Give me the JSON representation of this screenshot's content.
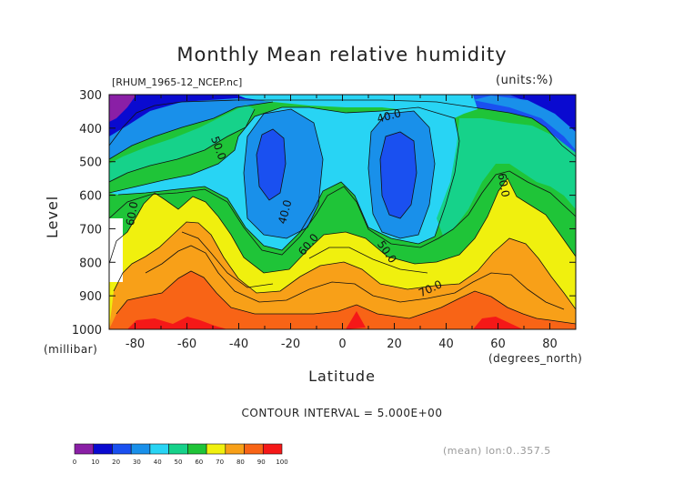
{
  "figure": {
    "title": "Monthly Mean relative humidity",
    "file_label": "[RHUM_1965-12_NCEP.nc]",
    "units_label": "(units:%)",
    "contour_interval_text": "CONTOUR INTERVAL = 5.000E+00",
    "mean_note": "(mean) lon:0..357.5"
  },
  "chart_data": {
    "type": "contour",
    "title": "Monthly Mean relative humidity",
    "xlabel": "Latitude",
    "xunit": "(degrees_north)",
    "ylabel": "Level",
    "yunit": "(millibar)",
    "xlim": [
      -90,
      90
    ],
    "ylim": [
      1000,
      300
    ],
    "xticks": [
      -80,
      -60,
      -40,
      -20,
      0,
      20,
      40,
      60,
      80
    ],
    "xtick_labels": [
      "-80",
      "-60",
      "-40",
      "-20",
      "0",
      "20",
      "40",
      "60",
      "80"
    ],
    "yticks": [
      300,
      400,
      500,
      600,
      700,
      800,
      900,
      1000
    ],
    "ytick_labels": [
      "300",
      "400",
      "500",
      "600",
      "700",
      "800",
      "900",
      "1000"
    ],
    "contour_interval": 5,
    "contour_labels": [
      {
        "text": "40.0",
        "lat": 18,
        "level": 365,
        "angle": -15
      },
      {
        "text": "50.0",
        "lat": -48,
        "level": 460,
        "angle": 70
      },
      {
        "text": "60.0",
        "lat": -81,
        "level": 655,
        "angle": -80
      },
      {
        "text": "40.0",
        "lat": -22,
        "level": 650,
        "angle": -75
      },
      {
        "text": "60.0",
        "lat": -13,
        "level": 748,
        "angle": -50
      },
      {
        "text": "50.0",
        "lat": 17,
        "level": 770,
        "angle": 55
      },
      {
        "text": "60.0",
        "lat": 62,
        "level": 570,
        "angle": 80
      },
      {
        "text": "70.0",
        "lat": 34,
        "level": 880,
        "angle": -25
      }
    ],
    "colorbar": {
      "tick_labels": [
        "0",
        "10",
        "20",
        "30",
        "40",
        "50",
        "60",
        "70",
        "80",
        "90",
        "100"
      ],
      "colors": [
        "#8a1fa6",
        "#0a0ad0",
        "#1a50f0",
        "#1990ea",
        "#28d4f4",
        "#16d28a",
        "#1fc438",
        "#f0f00e",
        "#f8a018",
        "#f86416",
        "#f51818"
      ]
    }
  }
}
